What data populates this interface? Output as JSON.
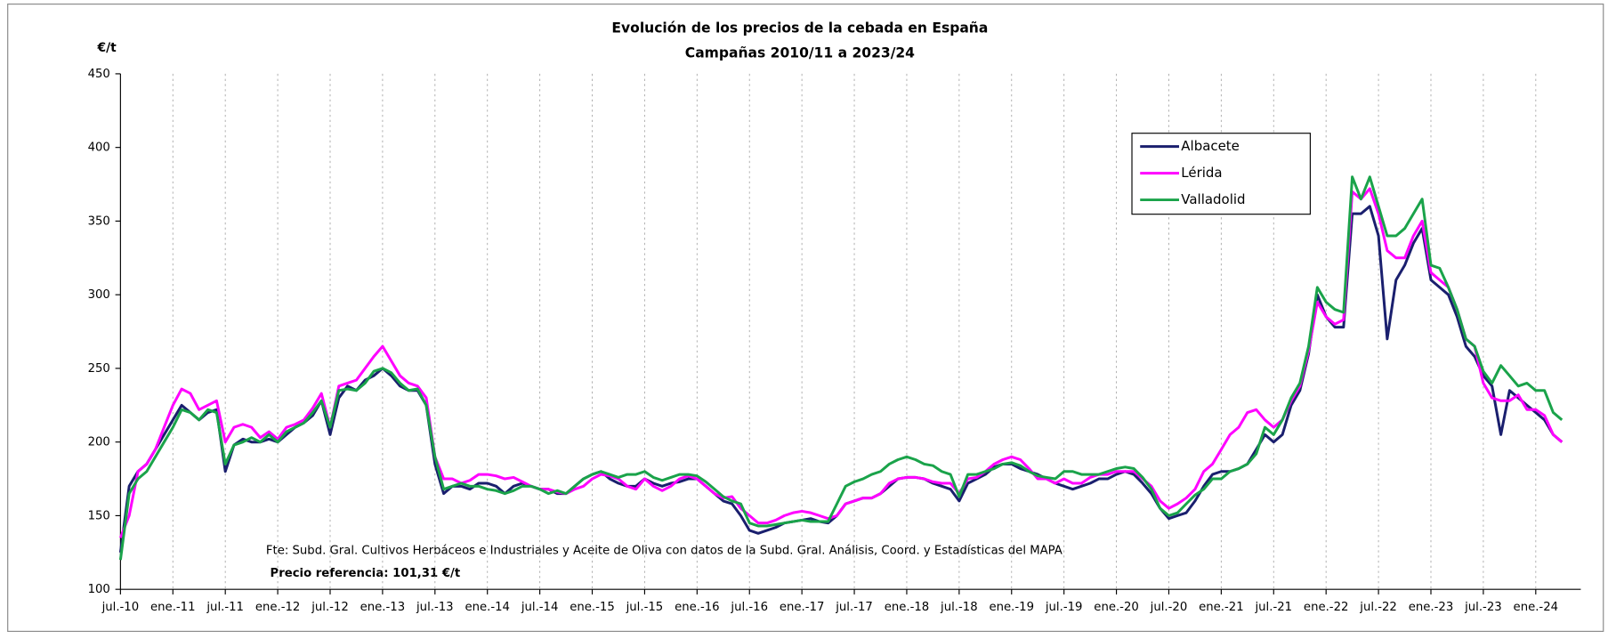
{
  "chart_data": {
    "type": "line",
    "title": "Evolución de los precios de la cebada en España",
    "subtitle": "Campañas 2010/11 a 2023/24",
    "y_label": "€/t",
    "annotations": [
      "Fte: Subd. Gral. Cultivos Herbáceos e Industriales y Aceite de Oliva con datos de la Subd. Gral. Análisis, Coord. y Estadísticas del MAPA",
      "Precio referencia: 101,31 €/t"
    ],
    "categories": [
      "jul.-10",
      null,
      null,
      null,
      null,
      null,
      "ene.-11",
      null,
      null,
      null,
      null,
      null,
      "jul.-11",
      null,
      null,
      null,
      null,
      null,
      "ene.-12",
      null,
      null,
      null,
      null,
      null,
      "jul.-12",
      null,
      null,
      null,
      null,
      null,
      "ene.-13",
      null,
      null,
      null,
      null,
      null,
      "jul.-13",
      null,
      null,
      null,
      null,
      null,
      "ene.-14",
      null,
      null,
      null,
      null,
      null,
      "jul.-14",
      null,
      null,
      null,
      null,
      null,
      "ene.-15",
      null,
      null,
      null,
      null,
      null,
      "jul.-15",
      null,
      null,
      null,
      null,
      null,
      "ene.-16",
      null,
      null,
      null,
      null,
      null,
      "jul.-16",
      null,
      null,
      null,
      null,
      null,
      "ene.-17",
      null,
      null,
      null,
      null,
      null,
      "jul.-17",
      null,
      null,
      null,
      null,
      null,
      "ene.-18",
      null,
      null,
      null,
      null,
      null,
      "jul.-18",
      null,
      null,
      null,
      null,
      null,
      "ene.-19",
      null,
      null,
      null,
      null,
      null,
      "jul.-19",
      null,
      null,
      null,
      null,
      null,
      "ene.-20",
      null,
      null,
      null,
      null,
      null,
      "jul.-20",
      null,
      null,
      null,
      null,
      null,
      "ene.-21",
      null,
      null,
      null,
      null,
      null,
      "jul.-21",
      null,
      null,
      null,
      null,
      null,
      "ene.-22",
      null,
      null,
      null,
      null,
      null,
      "jul.-22",
      null,
      null,
      null,
      null,
      null,
      "ene.-23",
      null,
      null,
      null,
      null,
      null,
      "jul.-23",
      null,
      null,
      null,
      null,
      null,
      "ene.-24",
      null,
      null,
      null
    ],
    "series": [
      {
        "name": "Albacete",
        "color": "#1a1f6e",
        "values": [
          125,
          170,
          180,
          185,
          195,
          205,
          215,
          225,
          220,
          215,
          220,
          222,
          180,
          198,
          202,
          200,
          200,
          202,
          200,
          205,
          210,
          213,
          218,
          228,
          205,
          230,
          238,
          235,
          242,
          245,
          250,
          245,
          238,
          235,
          235,
          225,
          185,
          165,
          170,
          170,
          168,
          172,
          172,
          170,
          165,
          170,
          172,
          170,
          168,
          168,
          165,
          165,
          170,
          175,
          178,
          180,
          175,
          172,
          170,
          170,
          175,
          172,
          170,
          172,
          173,
          175,
          175,
          170,
          165,
          160,
          158,
          150,
          140,
          138,
          140,
          142,
          145,
          146,
          147,
          148,
          146,
          145,
          150,
          158,
          160,
          162,
          162,
          165,
          170,
          175,
          176,
          176,
          175,
          172,
          170,
          168,
          160,
          172,
          175,
          178,
          183,
          185,
          185,
          182,
          180,
          178,
          175,
          172,
          170,
          168,
          170,
          172,
          175,
          175,
          178,
          180,
          178,
          172,
          165,
          155,
          148,
          150,
          152,
          160,
          170,
          178,
          180,
          180,
          182,
          185,
          195,
          205,
          200,
          205,
          225,
          235,
          260,
          300,
          285,
          278,
          278,
          355,
          355,
          360,
          340,
          270,
          310,
          320,
          335,
          345,
          310,
          305,
          300,
          285,
          265,
          258,
          245,
          238,
          205,
          235,
          230,
          225,
          220,
          215,
          205,
          200
        ]
      },
      {
        "name": "Lérida",
        "color": "#ff00ff",
        "values": [
          135,
          150,
          180,
          185,
          195,
          210,
          225,
          236,
          233,
          222,
          225,
          228,
          200,
          210,
          212,
          210,
          203,
          207,
          202,
          210,
          212,
          215,
          223,
          233,
          210,
          238,
          240,
          242,
          250,
          258,
          265,
          255,
          245,
          240,
          238,
          230,
          190,
          175,
          175,
          172,
          174,
          178,
          178,
          177,
          175,
          176,
          173,
          170,
          168,
          168,
          166,
          165,
          168,
          170,
          175,
          178,
          177,
          175,
          170,
          168,
          175,
          170,
          167,
          170,
          175,
          177,
          175,
          170,
          165,
          162,
          163,
          155,
          150,
          145,
          145,
          147,
          150,
          152,
          153,
          152,
          150,
          148,
          150,
          158,
          160,
          162,
          162,
          165,
          172,
          175,
          176,
          176,
          175,
          173,
          172,
          172,
          165,
          175,
          176,
          180,
          185,
          188,
          190,
          188,
          182,
          175,
          175,
          172,
          175,
          172,
          172,
          176,
          178,
          178,
          180,
          180,
          180,
          175,
          170,
          160,
          155,
          158,
          162,
          168,
          180,
          185,
          195,
          205,
          210,
          220,
          222,
          215,
          210,
          215,
          228,
          238,
          262,
          295,
          285,
          280,
          283,
          370,
          365,
          372,
          355,
          330,
          325,
          325,
          340,
          350,
          315,
          310,
          305,
          290,
          270,
          265,
          240,
          230,
          228,
          228,
          232,
          222,
          222,
          218,
          205,
          200
        ]
      },
      {
        "name": "Valladolid",
        "color": "#1aa34a",
        "values": [
          120,
          165,
          175,
          180,
          190,
          200,
          210,
          222,
          220,
          215,
          222,
          220,
          185,
          198,
          200,
          203,
          200,
          205,
          200,
          207,
          210,
          213,
          220,
          228,
          210,
          235,
          236,
          235,
          240,
          248,
          250,
          247,
          240,
          235,
          236,
          225,
          190,
          168,
          170,
          172,
          170,
          170,
          168,
          167,
          165,
          167,
          170,
          170,
          168,
          165,
          167,
          165,
          170,
          175,
          178,
          180,
          178,
          176,
          178,
          178,
          180,
          176,
          174,
          176,
          178,
          178,
          177,
          173,
          168,
          163,
          160,
          158,
          145,
          143,
          143,
          144,
          145,
          146,
          147,
          146,
          146,
          146,
          158,
          170,
          173,
          175,
          178,
          180,
          185,
          188,
          190,
          188,
          185,
          184,
          180,
          178,
          163,
          178,
          178,
          180,
          182,
          185,
          186,
          184,
          180,
          177,
          176,
          175,
          180,
          180,
          178,
          178,
          178,
          180,
          182,
          183,
          182,
          176,
          168,
          155,
          150,
          152,
          158,
          164,
          168,
          175,
          175,
          180,
          182,
          185,
          192,
          210,
          205,
          215,
          230,
          240,
          265,
          305,
          295,
          290,
          288,
          380,
          365,
          380,
          360,
          340,
          340,
          345,
          355,
          365,
          320,
          318,
          305,
          290,
          270,
          265,
          248,
          240,
          252,
          245,
          238,
          240,
          235,
          235,
          220,
          215
        ]
      }
    ],
    "ylim": [
      100,
      450
    ],
    "yticks": [
      100,
      150,
      200,
      250,
      300,
      350,
      400,
      450
    ],
    "xgrid": true,
    "legend": "top-right"
  }
}
